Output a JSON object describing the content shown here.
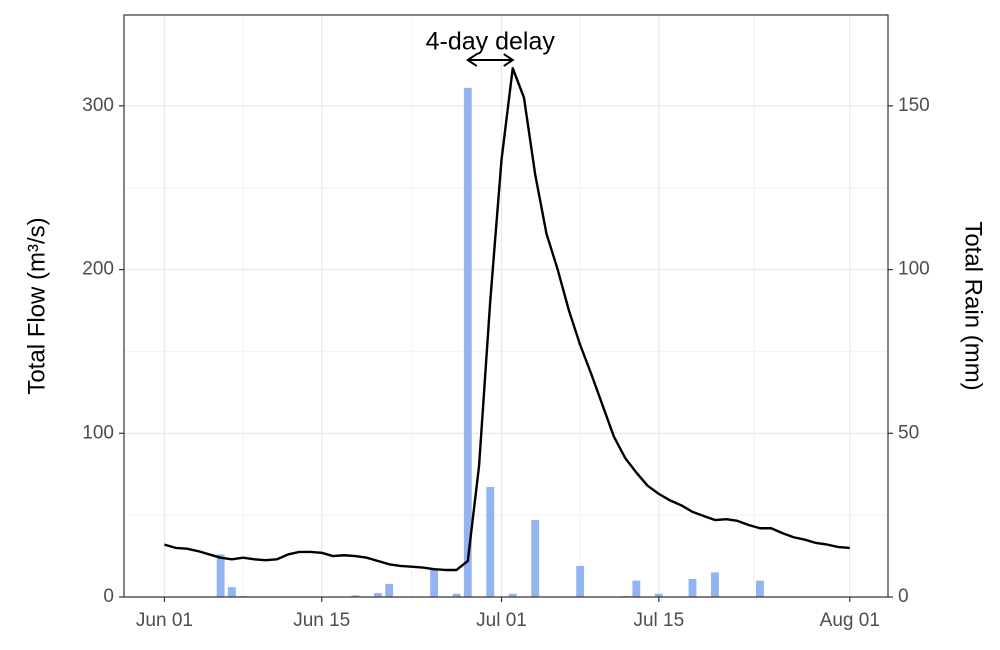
{
  "chart_data": {
    "type": "bar-line",
    "y_label": "Total Flow (m³/s)",
    "y2_label": "Total Rain (mm)",
    "xlim": [
      -3.6,
      64.4
    ],
    "xticks": [
      {
        "value": 0,
        "label": "Jun 01"
      },
      {
        "value": 14,
        "label": "Jun 15"
      },
      {
        "value": 30,
        "label": "Jul 01"
      },
      {
        "value": 44,
        "label": "Jul 15"
      },
      {
        "value": 61,
        "label": "Aug 01"
      }
    ],
    "ylim": [
      0,
      355.5
    ],
    "yticks": [
      0,
      100,
      200,
      300
    ],
    "y2lim": [
      0,
      177.75
    ],
    "y2ticks": [
      0,
      50,
      100,
      150
    ],
    "grid": true,
    "series": [
      {
        "type": "line",
        "color": "#000000",
        "x": [
          0,
          1,
          2,
          3,
          4,
          5,
          6,
          7,
          8,
          9,
          10,
          11,
          12,
          13,
          14,
          15,
          16,
          17,
          18,
          19,
          20,
          21,
          22,
          23,
          24,
          25,
          26,
          27,
          28,
          29,
          30,
          31,
          32,
          33,
          34,
          35,
          36,
          37,
          38,
          39,
          40,
          41,
          42,
          43,
          44,
          45,
          46,
          47,
          48,
          49,
          50,
          51,
          52,
          53,
          54,
          55,
          56,
          57,
          58,
          59,
          60,
          61
        ],
        "values": [
          32,
          30,
          29.5,
          28,
          26,
          24,
          23,
          24,
          23,
          22.5,
          23,
          26,
          27.5,
          27.5,
          27,
          25,
          25.5,
          25,
          24,
          22,
          20,
          19,
          18.5,
          18,
          17,
          16.5,
          16.5,
          22,
          80,
          181,
          267,
          323,
          305,
          258,
          222,
          200,
          175,
          154,
          136,
          117,
          98,
          85,
          76,
          68,
          63,
          59,
          56,
          52,
          49.5,
          47,
          47.5,
          46.5,
          44,
          42,
          42,
          39,
          36.5,
          35,
          33,
          32,
          30.5,
          30
        ]
      },
      {
        "type": "bar",
        "axis": "y2",
        "color": "#7fa7ee",
        "x": [
          5,
          6,
          7,
          17,
          19,
          20,
          24,
          26,
          27,
          29,
          31,
          33,
          37,
          41,
          42,
          44,
          47,
          49,
          53
        ],
        "values": [
          13,
          3,
          0.3,
          0.5,
          1.2,
          4,
          8.5,
          1,
          155.5,
          33.6,
          1,
          23.5,
          9.5,
          0.3,
          5,
          1,
          5.5,
          7.5,
          5
        ]
      }
    ],
    "annotation": {
      "text": "4-day delay",
      "x_start": 27,
      "x_end": 31,
      "y": 328
    }
  }
}
